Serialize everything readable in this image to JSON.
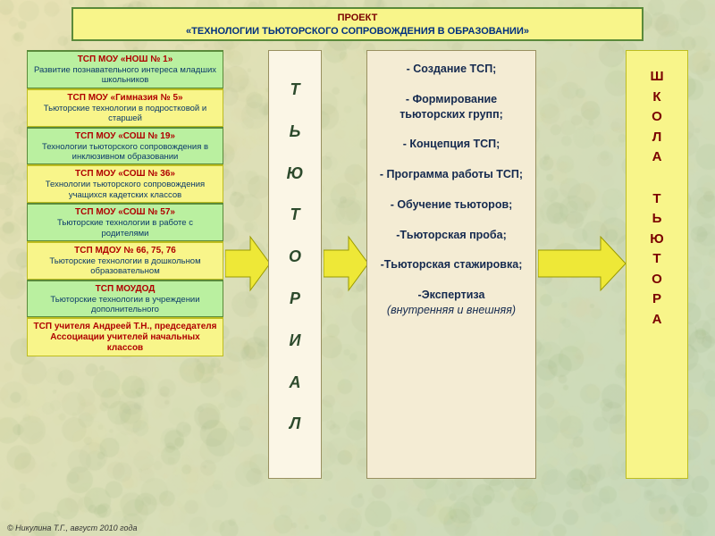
{
  "colors": {
    "bg_from": "#e9e3b5",
    "bg_to": "#c7d9bb",
    "header_bg": "#f8f58a",
    "header_border": "#5a8a3a",
    "header_line1": "#7a0000",
    "header_line2": "#003080",
    "box_green_bg": "#baf0a0",
    "box_green_border": "#5a8a3a",
    "box_yellow_bg": "#f8f58a",
    "box_yellow_border": "#bdbd20",
    "center_bg": "#fbf6e6",
    "center_border": "#999060",
    "list_bg": "#f4ecd4",
    "list_border": "#999060",
    "right_bg": "#f8f58a",
    "right_border": "#bdbd20",
    "arrow_fill": "#eee837",
    "arrow_stroke": "#9a9a00",
    "tsp_title_red": "#b00000",
    "right_text": "#7a0000"
  },
  "header": {
    "line1": "ПРОЕКТ",
    "line2": "«ТЕХНОЛОГИИ ТЬЮТОРСКОГО СОПРОВОЖДЕНИЯ В ОБРАЗОВАНИИ»"
  },
  "tsp": [
    {
      "variant": "green",
      "title": "ТСП МОУ «НОШ № 1»",
      "desc": "Развитие познавательного интереса младших школьников"
    },
    {
      "variant": "yellow",
      "title": "ТСП МОУ «Гимназия № 5»",
      "desc": "Тьюторские технологии в подростковой и старшей"
    },
    {
      "variant": "green",
      "title": "ТСП МОУ «СОШ № 19»",
      "desc": "Технологии тьюторского сопровождения в инклюзивном образовании"
    },
    {
      "variant": "yellow",
      "title": "ТСП МОУ «СОШ № 36»",
      "desc": "Технологии тьюторского сопровождения учащихся кадетских классов"
    },
    {
      "variant": "green",
      "title": "ТСП МОУ «СОШ № 57»",
      "desc": "Тьюторские технологии в работе с родителями"
    },
    {
      "variant": "yellow",
      "title": "ТСП МДОУ № 66, 75, 76",
      "desc": "Тьюторские технологии в дошкольном образовательном"
    },
    {
      "variant": "green",
      "title": "ТСП МОУДОД",
      "desc": "Тьюторские технологии в учреждении дополнительного"
    },
    {
      "variant": "yellow",
      "title": "ТСП учителя Андреей Т.Н., председателя Ассоциации учителей начальных классов",
      "desc": ""
    }
  ],
  "center_letters": [
    "Т",
    "Ь",
    "Ю",
    "Т",
    "О",
    "Р",
    "И",
    "А",
    "Л"
  ],
  "list_items": [
    "- Создание ТСП;",
    "",
    "- Формирование тьюторских групп;",
    "",
    "- Концепция ТСП;",
    "",
    "- Программа работы ТСП;",
    "",
    "- Обучение тьюторов;",
    "",
    "-Тьюторская проба;",
    "",
    "-Тьюторская стажировка;",
    "",
    "-Экспертиза"
  ],
  "list_tail_italic": "(внутренняя и внешняя)",
  "right_lines_1": [
    "Ш",
    "К",
    "О",
    "Л",
    "А"
  ],
  "right_lines_2": [
    "Т",
    "Ь",
    "Ю",
    "Т",
    "О",
    "Р",
    "А"
  ],
  "footer": "© Никулина Т.Г., август 2010 года"
}
